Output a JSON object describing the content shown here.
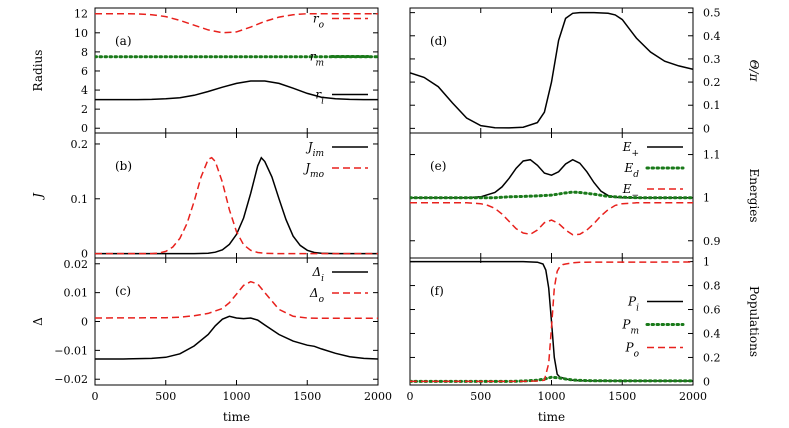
{
  "chart_data": [
    {
      "type": "line",
      "panel": "a",
      "column": "left",
      "row": 0,
      "ylabel": "Radius",
      "xlabel": "",
      "xlim": [
        0,
        2000
      ],
      "ylim": [
        -0.5,
        12.6
      ],
      "xticks": [
        0,
        500,
        1000,
        1500,
        2000
      ],
      "yticks": [
        0,
        2,
        4,
        6,
        8,
        10,
        12
      ],
      "y_axis_side": "left",
      "show_x_ticklabels": false,
      "legend": [
        {
          "label": "r_o",
          "display": "r",
          "sub": "o",
          "color": "#e8211d",
          "dash": "dashed"
        },
        {
          "label": "r_m",
          "display": "r",
          "sub": "m",
          "color": "#1a7a1a",
          "dash": "dotted"
        },
        {
          "label": "r_i",
          "display": "r",
          "sub": "i",
          "color": "#000000",
          "dash": "solid"
        }
      ],
      "legend_placement": "right",
      "series": [
        {
          "name": "r_o",
          "color": "#e8211d",
          "dash": "dashed",
          "x": [
            0,
            100,
            200,
            300,
            400,
            500,
            600,
            700,
            800,
            900,
            1000,
            1100,
            1200,
            1300,
            1400,
            1500,
            1600,
            1700,
            1800,
            1900,
            2000
          ],
          "y": [
            12,
            12,
            12,
            11.98,
            11.9,
            11.7,
            11.3,
            10.8,
            10.3,
            10.0,
            10.1,
            10.6,
            11.2,
            11.65,
            11.9,
            12,
            12,
            12,
            12,
            12,
            12
          ]
        },
        {
          "name": "r_m",
          "color": "#1a7a1a",
          "dash": "dotted",
          "x": [
            0,
            500,
            1000,
            1500,
            2000
          ],
          "y": [
            7.5,
            7.5,
            7.5,
            7.5,
            7.5
          ]
        },
        {
          "name": "r_i",
          "color": "#000000",
          "dash": "solid",
          "x": [
            0,
            100,
            200,
            300,
            400,
            500,
            600,
            700,
            800,
            900,
            1000,
            1100,
            1200,
            1300,
            1400,
            1500,
            1600,
            1700,
            1800,
            1900,
            2000
          ],
          "y": [
            3,
            3,
            3,
            3,
            3.02,
            3.08,
            3.2,
            3.45,
            3.85,
            4.3,
            4.7,
            4.95,
            4.95,
            4.7,
            4.2,
            3.65,
            3.25,
            3.08,
            3.02,
            3,
            3
          ]
        }
      ]
    },
    {
      "type": "line",
      "panel": "b",
      "column": "left",
      "row": 1,
      "ylabel": "J",
      "xlabel": "",
      "xlim": [
        0,
        2000
      ],
      "ylim": [
        -0.008,
        0.22
      ],
      "xticks": [
        0,
        500,
        1000,
        1500,
        2000
      ],
      "yticks": [
        0,
        0.1,
        0.2
      ],
      "y_axis_side": "left",
      "show_x_ticklabels": false,
      "legend": [
        {
          "label": "J_im",
          "display": "J",
          "sub": "im",
          "color": "#000000",
          "dash": "solid"
        },
        {
          "label": "J_mo",
          "display": "J",
          "sub": "mo",
          "color": "#e8211d",
          "dash": "dashed"
        }
      ],
      "legend_placement": "top-right",
      "series": [
        {
          "name": "J_im",
          "color": "#000000",
          "dash": "solid",
          "x": [
            0,
            700,
            800,
            850,
            900,
            950,
            1000,
            1050,
            1100,
            1150,
            1175,
            1200,
            1250,
            1300,
            1350,
            1400,
            1450,
            1500,
            1550,
            1600,
            1700,
            2000
          ],
          "y": [
            0,
            0,
            0.0008,
            0.0025,
            0.007,
            0.017,
            0.035,
            0.065,
            0.11,
            0.16,
            0.175,
            0.168,
            0.14,
            0.1,
            0.062,
            0.032,
            0.015,
            0.006,
            0.002,
            0.0005,
            0,
            0
          ]
        },
        {
          "name": "J_mo",
          "color": "#e8211d",
          "dash": "dashed",
          "x": [
            0,
            400,
            450,
            500,
            550,
            600,
            650,
            700,
            750,
            800,
            825,
            850,
            900,
            950,
            1000,
            1050,
            1100,
            1150,
            1200,
            1300,
            2000
          ],
          "y": [
            0,
            0,
            0.001,
            0.004,
            0.012,
            0.028,
            0.055,
            0.095,
            0.14,
            0.172,
            0.175,
            0.168,
            0.13,
            0.08,
            0.04,
            0.016,
            0.006,
            0.002,
            0.0005,
            0,
            0
          ]
        }
      ]
    },
    {
      "type": "line",
      "panel": "c",
      "column": "left",
      "row": 2,
      "ylabel": "Δ",
      "xlabel": "time",
      "xlim": [
        0,
        2000
      ],
      "ylim": [
        -0.022,
        0.022
      ],
      "xticks": [
        0,
        500,
        1000,
        1500,
        2000
      ],
      "yticks": [
        -0.02,
        -0.01,
        0,
        0.01,
        0.02
      ],
      "y_axis_side": "left",
      "show_x_ticklabels": true,
      "legend": [
        {
          "label": "Δ_i",
          "display": "Δ",
          "sub": "i",
          "color": "#000000",
          "dash": "solid"
        },
        {
          "label": "Δ_o",
          "display": "Δ",
          "sub": "o",
          "color": "#e8211d",
          "dash": "dashed"
        }
      ],
      "legend_placement": "top-right",
      "series": [
        {
          "name": "Δ_i",
          "color": "#000000",
          "dash": "solid",
          "x": [
            0,
            200,
            400,
            500,
            600,
            700,
            800,
            850,
            900,
            950,
            1000,
            1050,
            1100,
            1150,
            1200,
            1300,
            1400,
            1500,
            1550,
            1600,
            1700,
            1800,
            1900,
            2000
          ],
          "y": [
            -0.013,
            -0.013,
            -0.0128,
            -0.0124,
            -0.0112,
            -0.0085,
            -0.0045,
            -0.0015,
            0.0008,
            0.0018,
            0.0012,
            0.001,
            0.0012,
            0.0005,
            -0.0012,
            -0.0045,
            -0.0068,
            -0.0082,
            -0.0086,
            -0.0095,
            -0.011,
            -0.0122,
            -0.0128,
            -0.013
          ]
        },
        {
          "name": "Δ_o",
          "color": "#e8211d",
          "dash": "dashed",
          "x": [
            0,
            500,
            600,
            700,
            800,
            900,
            950,
            1000,
            1050,
            1100,
            1150,
            1200,
            1300,
            1400,
            1500,
            1600,
            2000
          ],
          "y": [
            0.0012,
            0.0013,
            0.0015,
            0.002,
            0.0028,
            0.0045,
            0.0065,
            0.0095,
            0.0125,
            0.0138,
            0.013,
            0.01,
            0.0042,
            0.0018,
            0.0012,
            0.0011,
            0.0011
          ]
        }
      ]
    },
    {
      "type": "line",
      "panel": "d",
      "column": "right",
      "row": 0,
      "ylabel": "Θ/π",
      "xlabel": "",
      "xlim": [
        0,
        2000
      ],
      "ylim": [
        -0.02,
        0.52
      ],
      "xticks": [
        0,
        500,
        1000,
        1500,
        2000
      ],
      "yticks": [
        0,
        0.1,
        0.2,
        0.3,
        0.4,
        0.5
      ],
      "y_axis_side": "right",
      "show_x_ticklabels": false,
      "legend": [],
      "legend_placement": "none",
      "series": [
        {
          "name": "",
          "color": "#000000",
          "dash": "solid",
          "x": [
            0,
            100,
            200,
            300,
            400,
            500,
            600,
            700,
            800,
            900,
            950,
            1000,
            1050,
            1100,
            1150,
            1200,
            1300,
            1400,
            1450,
            1500,
            1550,
            1600,
            1700,
            1800,
            1900,
            2000
          ],
          "y": [
            0.24,
            0.22,
            0.18,
            0.11,
            0.045,
            0.012,
            0.003,
            0.002,
            0.005,
            0.025,
            0.07,
            0.2,
            0.38,
            0.475,
            0.497,
            0.5,
            0.5,
            0.497,
            0.49,
            0.47,
            0.43,
            0.39,
            0.33,
            0.29,
            0.27,
            0.255
          ]
        }
      ]
    },
    {
      "type": "line",
      "panel": "e",
      "column": "right",
      "row": 1,
      "ylabel": "Energies",
      "xlabel": "",
      "xlim": [
        0,
        2000
      ],
      "ylim": [
        0.86,
        1.15
      ],
      "xticks": [
        0,
        500,
        1000,
        1500,
        2000
      ],
      "yticks": [
        0.9,
        1,
        1.1
      ],
      "y_axis_side": "right",
      "show_x_ticklabels": false,
      "legend": [
        {
          "label": "E_+",
          "display": "E",
          "sub": "+",
          "color": "#000000",
          "dash": "solid"
        },
        {
          "label": "E_d",
          "display": "E",
          "sub": "d",
          "color": "#1a7a1a",
          "dash": "dotted"
        },
        {
          "label": "E_-",
          "display": "E",
          "sub": "−",
          "color": "#e8211d",
          "dash": "dashed"
        }
      ],
      "legend_placement": "top-right",
      "series": [
        {
          "name": "E_+",
          "color": "#000000",
          "dash": "solid",
          "x": [
            0,
            400,
            500,
            600,
            650,
            700,
            750,
            800,
            850,
            900,
            950,
            1000,
            1050,
            1100,
            1150,
            1200,
            1250,
            1300,
            1350,
            1400,
            1450,
            1500,
            1600,
            2000
          ],
          "y": [
            1.0,
            1.0,
            1.002,
            1.012,
            1.025,
            1.045,
            1.068,
            1.085,
            1.088,
            1.075,
            1.057,
            1.052,
            1.06,
            1.078,
            1.088,
            1.08,
            1.06,
            1.035,
            1.015,
            1.005,
            1.001,
            1.0,
            1.0,
            1.0
          ]
        },
        {
          "name": "E_d",
          "color": "#1a7a1a",
          "dash": "dotted",
          "x": [
            0,
            400,
            500,
            600,
            700,
            800,
            900,
            1000,
            1100,
            1150,
            1200,
            1300,
            1400,
            1500,
            1600,
            2000
          ],
          "y": [
            1.0,
            1.0,
            1.0,
            1.0,
            1.002,
            1.003,
            1.004,
            1.006,
            1.011,
            1.013,
            1.012,
            1.008,
            1.003,
            1.001,
            1.0,
            1.0
          ]
        },
        {
          "name": "E_-",
          "color": "#e8211d",
          "dash": "dashed",
          "x": [
            0,
            400,
            500,
            550,
            600,
            650,
            700,
            750,
            800,
            850,
            900,
            950,
            1000,
            1050,
            1100,
            1150,
            1200,
            1250,
            1300,
            1350,
            1400,
            1450,
            1500,
            1600,
            2000
          ],
          "y": [
            0.988,
            0.988,
            0.986,
            0.982,
            0.975,
            0.962,
            0.945,
            0.928,
            0.918,
            0.915,
            0.925,
            0.942,
            0.948,
            0.94,
            0.925,
            0.914,
            0.915,
            0.925,
            0.94,
            0.958,
            0.972,
            0.982,
            0.986,
            0.988,
            0.988
          ]
        }
      ]
    },
    {
      "type": "line",
      "panel": "f",
      "column": "right",
      "row": 2,
      "ylabel": "Populations",
      "xlabel": "time",
      "xlim": [
        0,
        2000
      ],
      "ylim": [
        -0.03,
        1.03
      ],
      "xticks": [
        0,
        500,
        1000,
        1500,
        2000
      ],
      "yticks": [
        0,
        0.2,
        0.4,
        0.6,
        0.8,
        1
      ],
      "y_axis_side": "right",
      "show_x_ticklabels": true,
      "legend": [
        {
          "label": "P_i",
          "display": "P",
          "sub": "i",
          "color": "#000000",
          "dash": "solid"
        },
        {
          "label": "P_m",
          "display": "P",
          "sub": "m",
          "color": "#1a7a1a",
          "dash": "dotted"
        },
        {
          "label": "P_o",
          "display": "P",
          "sub": "o",
          "color": "#e8211d",
          "dash": "dashed"
        }
      ],
      "legend_placement": "right",
      "series": [
        {
          "name": "P_i",
          "color": "#000000",
          "dash": "solid",
          "x": [
            0,
            800,
            900,
            940,
            960,
            980,
            1000,
            1020,
            1040,
            1060,
            1080,
            1100,
            1150,
            1200,
            2000
          ],
          "y": [
            1.0,
            1.0,
            0.995,
            0.98,
            0.93,
            0.78,
            0.5,
            0.2,
            0.06,
            0.035,
            0.03,
            0.02,
            0.01,
            0.005,
            0.003
          ]
        },
        {
          "name": "P_m",
          "color": "#1a7a1a",
          "dash": "dotted",
          "x": [
            0,
            700,
            800,
            900,
            950,
            1000,
            1050,
            1100,
            1150,
            1200,
            1300,
            2000
          ],
          "y": [
            0.0,
            0.0,
            0.003,
            0.01,
            0.02,
            0.035,
            0.03,
            0.02,
            0.012,
            0.008,
            0.005,
            0.004
          ]
        },
        {
          "name": "P_o",
          "color": "#e8211d",
          "dash": "dashed",
          "x": [
            0,
            800,
            900,
            950,
            980,
            1000,
            1020,
            1040,
            1060,
            1080,
            1100,
            1150,
            1200,
            2000
          ],
          "y": [
            0.0,
            0.0,
            0.003,
            0.01,
            0.15,
            0.45,
            0.78,
            0.92,
            0.96,
            0.975,
            0.98,
            0.99,
            0.995,
            0.997
          ]
        }
      ]
    }
  ]
}
